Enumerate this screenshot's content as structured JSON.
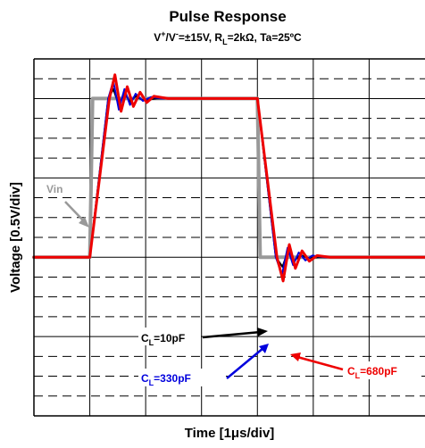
{
  "chart_data": {
    "type": "line",
    "title": "Pulse Response",
    "subtitle": {
      "v_plus": "V",
      "sup_plus": "+",
      "slash_v": "/V",
      "sup_minus": "-",
      "conditions": "=±15V, R",
      "sub_l": "L",
      "tail": "=2kΩ, Ta=25ºC"
    },
    "xlabel": "Time [1μs/div]",
    "ylabel": "Voltage [0.5V/div]",
    "x_unit": "μs",
    "y_unit": "V",
    "xlim": [
      0,
      7
    ],
    "ylim": [
      -2.0,
      2.5
    ],
    "grid": true,
    "annotations": [
      {
        "id": "vin",
        "text": "Vin",
        "color": "#999999"
      },
      {
        "id": "cl10",
        "prefix": "C",
        "sub": "L",
        "value": "=10pF",
        "color": "#000000"
      },
      {
        "id": "cl330",
        "prefix": "C",
        "sub": "L",
        "value": "=330pF",
        "color": "#0000dd"
      },
      {
        "id": "cl680",
        "prefix": "C",
        "sub": "L",
        "value": "=680pF",
        "color": "#ee0000"
      }
    ],
    "series": [
      {
        "name": "Vin",
        "color": "#999999",
        "width": 4,
        "x": [
          0,
          1.0,
          1.05,
          4.0,
          4.05,
          7
        ],
        "y": [
          0,
          0,
          2.0,
          2.0,
          0,
          0
        ]
      },
      {
        "name": "CL=10pF",
        "color": "#000000",
        "width": 2,
        "x": [
          0,
          1.0,
          1.33,
          1.42,
          1.52,
          1.62,
          1.72,
          1.82,
          1.95,
          2.2,
          4.0,
          4.33,
          4.45,
          4.55,
          4.65,
          4.77,
          4.9,
          5.1,
          7
        ],
        "y": [
          0,
          0,
          2.0,
          2.12,
          1.92,
          2.07,
          1.96,
          2.03,
          1.98,
          2.0,
          2.0,
          0.0,
          -0.12,
          0.08,
          -0.05,
          0.03,
          -0.01,
          0.0,
          0
        ]
      },
      {
        "name": "CL=330pF",
        "color": "#0000dd",
        "width": 2,
        "x": [
          0,
          1.0,
          1.33,
          1.42,
          1.52,
          1.62,
          1.72,
          1.82,
          1.95,
          2.1,
          2.3,
          4.0,
          4.33,
          4.44,
          4.54,
          4.64,
          4.74,
          4.86,
          4.98,
          5.2,
          7
        ],
        "y": [
          0,
          0,
          2.0,
          2.22,
          1.86,
          2.12,
          1.92,
          2.06,
          1.97,
          2.02,
          2.0,
          2.0,
          0.0,
          -0.22,
          0.12,
          -0.1,
          0.06,
          -0.04,
          0.02,
          0.0,
          0
        ]
      },
      {
        "name": "CL=680pF",
        "color": "#ee0000",
        "width": 3,
        "x": [
          0,
          1.0,
          1.35,
          1.45,
          1.56,
          1.67,
          1.78,
          1.9,
          2.02,
          2.15,
          2.4,
          4.0,
          4.35,
          4.46,
          4.57,
          4.68,
          4.8,
          4.93,
          5.07,
          5.3,
          7
        ],
        "y": [
          0,
          0,
          2.0,
          2.3,
          1.84,
          2.15,
          1.9,
          2.08,
          1.95,
          2.03,
          2.0,
          2.0,
          0.0,
          -0.3,
          0.16,
          -0.14,
          0.08,
          -0.05,
          0.02,
          0.0,
          0
        ]
      }
    ]
  }
}
